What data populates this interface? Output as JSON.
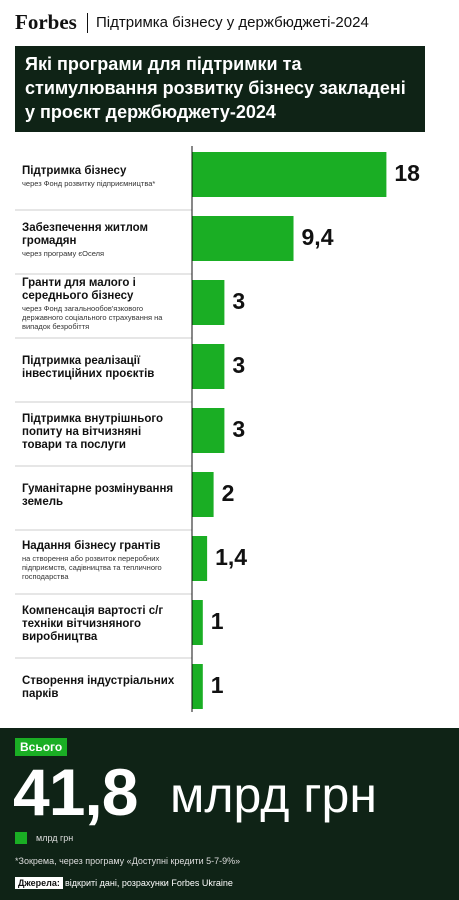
{
  "chart_data": {
    "type": "bar",
    "brand": "Forbes",
    "header": "Підтримка бізнесу у держбюджеті-2024",
    "title": "Які програми для підтримки та стимулювання розвитку бізнесу закладені у проєкт держбюджету-2024",
    "categories": [
      "Підтримка бізнесу",
      "Забезпечення житлом громадян",
      "Гранти для малого і середнього бізнесу",
      "Підтримка реалізації інвестиційних проєктів",
      "Підтримка внутрішнього попиту на вітчизняні товари та послуги",
      "Гуманітарне розмінування земель",
      "Надання бізнесу грантів",
      "Компенсація вартості с/г техніки вітчизняного виробництва",
      "Створення індустріальних парків"
    ],
    "notes": [
      "через Фонд розвитку підприємництва*",
      "через програму єОселя",
      "через Фонд загальнообов'язкового державного соціального страхування на випадок безробіття",
      null,
      null,
      null,
      "на створення або розвиток переробних підприємств, садівництва та тепличного господарства",
      null,
      null
    ],
    "values": [
      18,
      9.4,
      3,
      3,
      3,
      2,
      1.4,
      1,
      1
    ],
    "value_labels": [
      "18",
      "9,4",
      "3",
      "3",
      "3",
      "2",
      "1,4",
      "1",
      "1"
    ],
    "color": "#1aae24",
    "xlim": [
      0,
      20
    ],
    "total_badge": "Всього",
    "total": {
      "value": 41.8,
      "label": "41,8"
    },
    "total_unit": "млрд грн",
    "legend": "млрд грн",
    "footnote": "*Зокрема, через програму «Доступні кредити 5-7-9%»",
    "source_label": "Джерела:",
    "source": "відкриті дані, розрахунки Forbes Ukraine"
  }
}
